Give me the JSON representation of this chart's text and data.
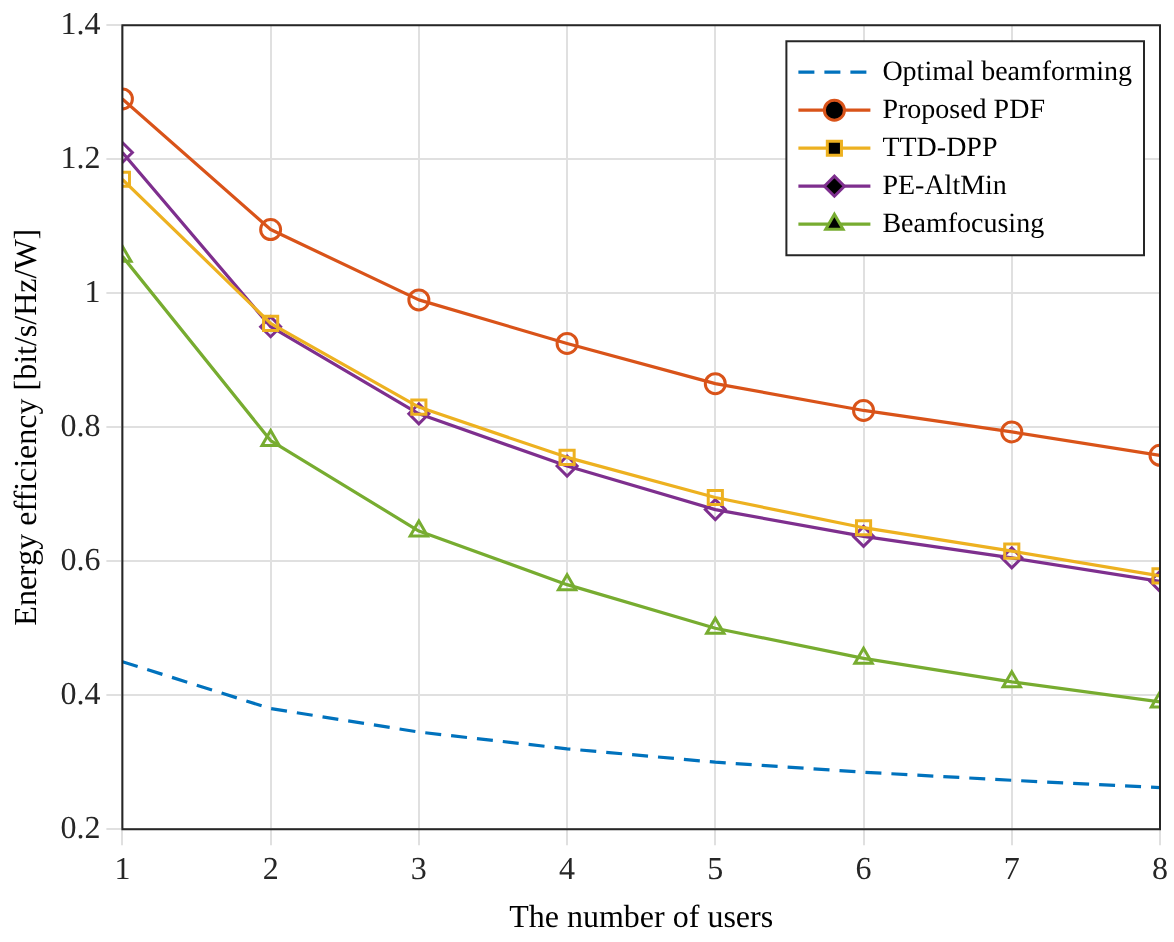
{
  "chart_data": {
    "type": "line",
    "xlabel": "The number of users",
    "ylabel": "Energy efficiency [bit/s/Hz/W]",
    "x": [
      1,
      2,
      3,
      4,
      5,
      6,
      7,
      8
    ],
    "series": [
      {
        "name": "Optimal beamforming",
        "color": "#0072bd",
        "marker": "none",
        "line_style": "dashed",
        "values": [
          0.45,
          0.38,
          0.345,
          0.32,
          0.3,
          0.285,
          0.273,
          0.262
        ]
      },
      {
        "name": "Proposed PDF",
        "color": "#d95319",
        "marker": "circle",
        "line_style": "solid",
        "values": [
          1.29,
          1.095,
          0.99,
          0.925,
          0.865,
          0.825,
          0.793,
          0.758
        ]
      },
      {
        "name": "TTD-DPP",
        "color": "#edb120",
        "marker": "square",
        "line_style": "solid",
        "values": [
          1.17,
          0.955,
          0.83,
          0.755,
          0.695,
          0.65,
          0.615,
          0.578
        ]
      },
      {
        "name": "PE-AltMin",
        "color": "#7e2f8e",
        "marker": "diamond",
        "line_style": "solid",
        "values": [
          1.21,
          0.95,
          0.82,
          0.742,
          0.677,
          0.637,
          0.605,
          0.57
        ]
      },
      {
        "name": "Beamfocusing",
        "color": "#77ac30",
        "marker": "triangle",
        "line_style": "solid",
        "values": [
          1.055,
          0.78,
          0.645,
          0.565,
          0.5,
          0.455,
          0.42,
          0.39
        ]
      }
    ],
    "xlim": [
      1,
      8
    ],
    "xticks": [
      1,
      2,
      3,
      4,
      5,
      6,
      7,
      8
    ],
    "ylim": [
      0.2,
      1.4
    ],
    "yticks": [
      0.2,
      0.4,
      0.6,
      0.8,
      1,
      1.2,
      1.4
    ],
    "grid": true,
    "legend": "top right"
  }
}
